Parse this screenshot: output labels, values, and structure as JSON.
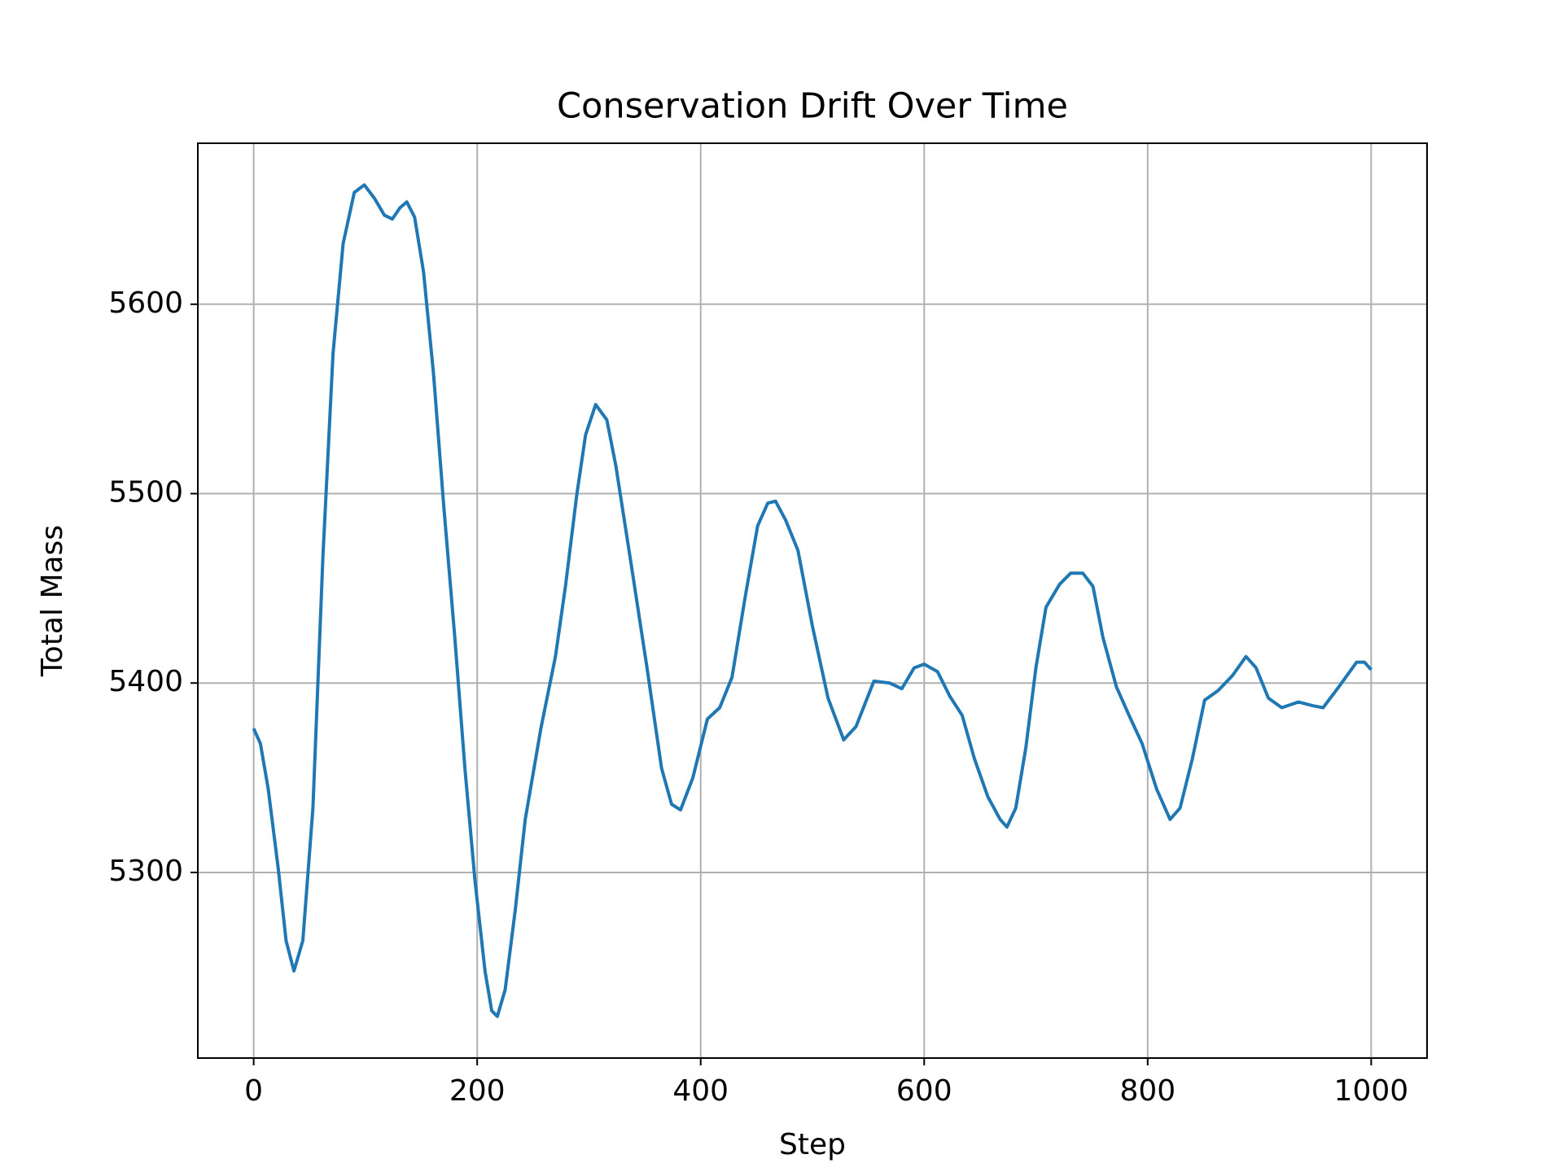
{
  "chart_data": {
    "type": "line",
    "title": "Conservation Drift Over Time",
    "x_label": "Step",
    "y_label": "Total Mass",
    "x": [
      0,
      6,
      13,
      22,
      29,
      36,
      44,
      53,
      62,
      71,
      80,
      90,
      99,
      108,
      117,
      124,
      131,
      137,
      144,
      152,
      161,
      170,
      180,
      189,
      198,
      207,
      213,
      218,
      225,
      234,
      243,
      257,
      270,
      279,
      289,
      297,
      306,
      316,
      324,
      338,
      352,
      365,
      374,
      382,
      393,
      406,
      417,
      428,
      440,
      451,
      460,
      467,
      476,
      487,
      500,
      514,
      528,
      539,
      555,
      569,
      580,
      591,
      600,
      612,
      623,
      634,
      645,
      657,
      668,
      674,
      682,
      691,
      700,
      709,
      721,
      731,
      742,
      751,
      760,
      772,
      784,
      795,
      808,
      820,
      829,
      840,
      851,
      863,
      876,
      888,
      897,
      908,
      920,
      935,
      948,
      957,
      971,
      987,
      994,
      1000
    ],
    "series": [
      {
        "name": "Total Mass",
        "color": "#1f77b4",
        "values": [
          5376,
          5368,
          5344,
          5302,
          5264,
          5248,
          5264,
          5334,
          5467,
          5574,
          5632,
          5659,
          5663,
          5656,
          5647,
          5645,
          5651,
          5654,
          5646,
          5617,
          5563,
          5494,
          5424,
          5355,
          5296,
          5248,
          5227,
          5224,
          5238,
          5280,
          5328,
          5376,
          5414,
          5451,
          5499,
          5531,
          5547,
          5539,
          5515,
          5462,
          5408,
          5355,
          5336,
          5333,
          5350,
          5381,
          5387,
          5403,
          5446,
          5483,
          5495,
          5496,
          5486,
          5470,
          5430,
          5392,
          5370,
          5377,
          5401,
          5400,
          5397,
          5408,
          5410,
          5406,
          5393,
          5383,
          5360,
          5340,
          5328,
          5324,
          5334,
          5366,
          5408,
          5440,
          5452,
          5458,
          5458,
          5451,
          5424,
          5398,
          5382,
          5368,
          5344,
          5328,
          5334,
          5360,
          5391,
          5396,
          5404,
          5414,
          5408,
          5392,
          5387,
          5390,
          5388,
          5387,
          5398,
          5411,
          5411,
          5407
        ]
      }
    ],
    "xlim": [
      -50,
      1050
    ],
    "ylim": [
      5202,
      5685
    ],
    "xticks": [
      0,
      200,
      400,
      600,
      800,
      1000
    ],
    "yticks": [
      5300,
      5400,
      5500,
      5600
    ],
    "grid": true
  }
}
